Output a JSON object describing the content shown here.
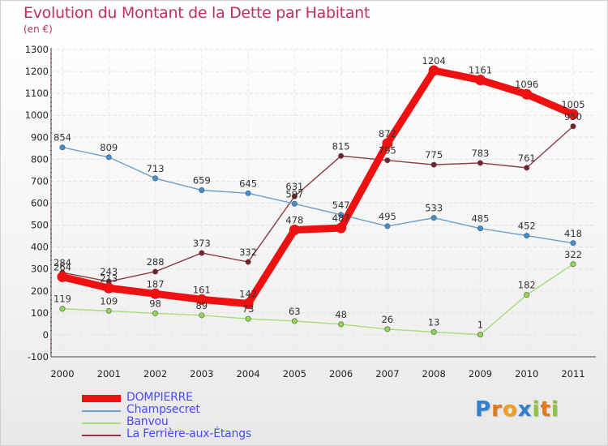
{
  "chart_data": {
    "type": "line",
    "title": "Evolution du Montant de la Dette par Habitant",
    "subtitle": "(en €)",
    "xlabel": "",
    "ylabel": "",
    "categories": [
      "2000",
      "2001",
      "2002",
      "2003",
      "2004",
      "2005",
      "2006",
      "2007",
      "2008",
      "2009",
      "2010",
      "2011"
    ],
    "ylim": [
      -100,
      1300
    ],
    "yticks": [
      -100,
      0,
      100,
      200,
      300,
      400,
      500,
      600,
      700,
      800,
      900,
      1000,
      1100,
      1200,
      1300
    ],
    "grid": true,
    "legend_position": "bottom-left",
    "series": [
      {
        "name": "La Ferrière-aux-Étangs",
        "color": "#7a1f2a",
        "line_color": "#8c3b42",
        "values": [
          284,
          243,
          288,
          373,
          332,
          631,
          815,
          795,
          775,
          783,
          761,
          950
        ]
      },
      {
        "name": "Champsecret",
        "color": "#3f8fd2",
        "line_color": "#6a9fcf",
        "values": [
          854,
          809,
          713,
          659,
          645,
          597,
          547,
          495,
          533,
          485,
          452,
          418
        ]
      },
      {
        "name": "Banvou",
        "color": "#8fd84f",
        "line_color": "#a8dc7a",
        "values": [
          119,
          109,
          98,
          89,
          73,
          63,
          48,
          26,
          13,
          1,
          182,
          322
        ]
      },
      {
        "name": "DOMPIERRE",
        "color": "#ee1111",
        "line_color": "#ee1111",
        "values": [
          264,
          213,
          187,
          161,
          142,
          478,
          487,
          872,
          1204,
          1161,
          1096,
          1005
        ]
      }
    ]
  },
  "legend": [
    {
      "name": "DOMPIERRE",
      "color": "#ee1111",
      "thickness": 9
    },
    {
      "name": "Champsecret",
      "color": "#6a9fcf",
      "thickness": 2
    },
    {
      "name": "Banvou",
      "color": "#a8dc7a",
      "thickness": 2
    },
    {
      "name": "La Ferrière-aux-Étangs",
      "color": "#8c3b42",
      "thickness": 2
    }
  ],
  "logo": {
    "letters": [
      {
        "ch": "P",
        "color": "#2f7fd0"
      },
      {
        "ch": "r",
        "color": "#e07a1a"
      },
      {
        "ch": "o",
        "color": "#f0a020"
      },
      {
        "ch": "x",
        "color": "#2f7fd0"
      },
      {
        "ch": "i",
        "color": "#8cc63f"
      },
      {
        "ch": "t",
        "color": "#e07a1a"
      },
      {
        "ch": "i",
        "color": "#8cc63f"
      }
    ]
  }
}
